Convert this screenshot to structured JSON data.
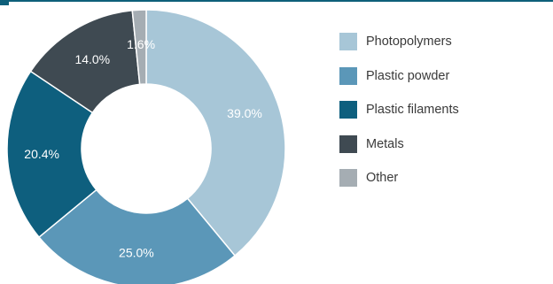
{
  "accent_color": "#0e5f7a",
  "chart_data": {
    "type": "pie",
    "variant": "donut",
    "title": "",
    "categories": [
      "Photopolymers",
      "Plastic powder",
      "Plastic filaments",
      "Metals",
      "Other"
    ],
    "values": [
      39.0,
      25.0,
      20.4,
      14.0,
      1.6
    ],
    "labels": [
      "39.0%",
      "25.0%",
      "20.4%",
      "14.0%",
      "1.6%"
    ],
    "unit": "%",
    "colors": [
      "#a7c6d7",
      "#5b97b8",
      "#0e5f7e",
      "#3f4a52",
      "#a5adb3"
    ],
    "legend": {
      "position": "right",
      "entries": [
        "Photopolymers",
        "Plastic powder",
        "Plastic filaments",
        "Metals",
        "Other"
      ]
    }
  }
}
